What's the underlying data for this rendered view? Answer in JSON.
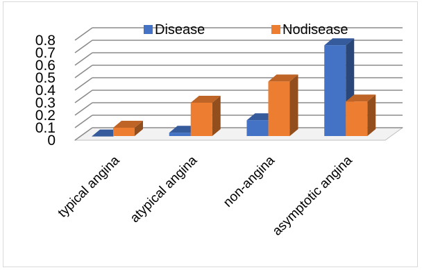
{
  "chart_data": {
    "type": "bar",
    "style": "3d-clustered-column",
    "categories": [
      "typical angina",
      "atypical angina",
      "non-angina",
      "asymptotic angina"
    ],
    "series": [
      {
        "name": "Disease",
        "values": [
          0.03,
          0.06,
          0.16,
          0.76
        ],
        "color": "#4472C4"
      },
      {
        "name": "Nodisease",
        "values": [
          0.1,
          0.3,
          0.47,
          0.31
        ],
        "color": "#ED7D31"
      }
    ],
    "ylim": [
      0,
      0.8
    ],
    "yticks": [
      "0",
      "0.1",
      "0.2",
      "0.3",
      "0.4",
      "0.5",
      "0.6",
      "0.7",
      "0.8"
    ],
    "legend_position": "top",
    "grid": true
  }
}
